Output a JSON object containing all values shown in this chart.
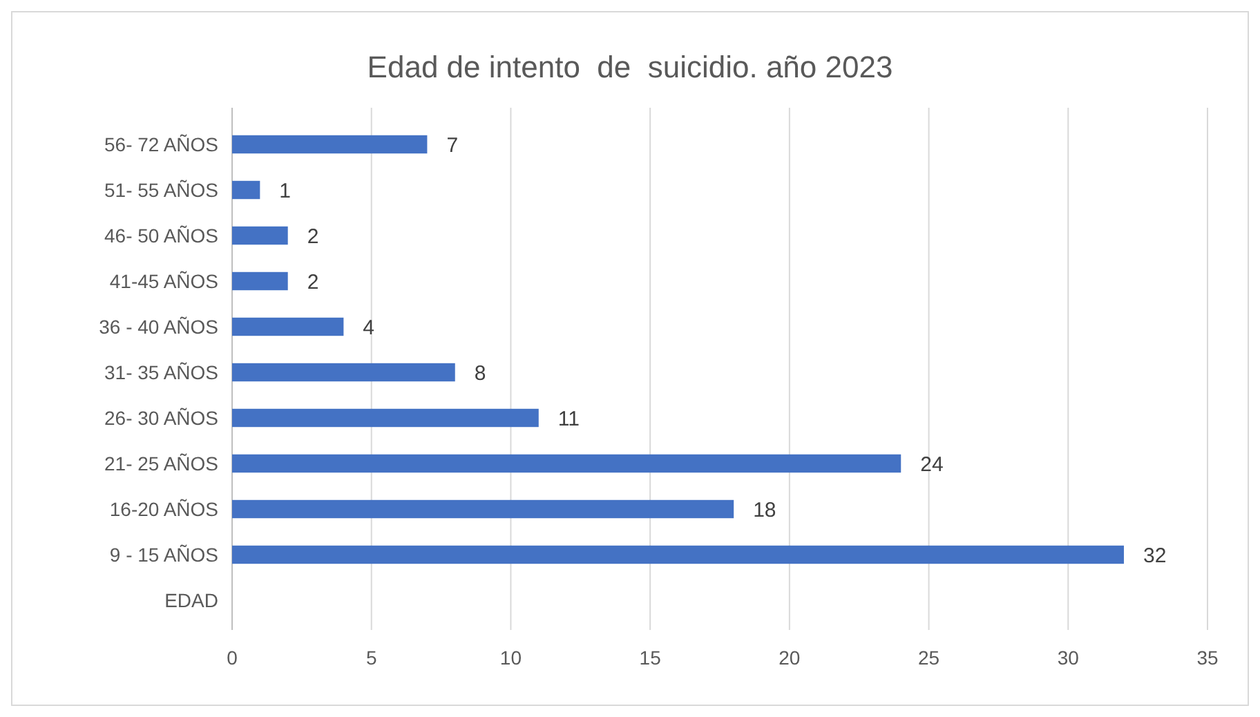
{
  "chart_data": {
    "type": "bar",
    "orientation": "horizontal",
    "title": "Edad de intento  de  suicidio. año 2023",
    "categories": [
      "56- 72 AÑOS",
      "51- 55 AÑOS",
      "46- 50 AÑOS",
      "41-45 AÑOS",
      "36 - 40 AÑOS",
      "31- 35 AÑOS",
      "26- 30 AÑOS",
      "21- 25 AÑOS",
      "16-20 AÑOS",
      "9 - 15 AÑOS",
      "EDAD"
    ],
    "values": [
      7,
      1,
      2,
      2,
      4,
      8,
      11,
      24,
      18,
      32,
      null
    ],
    "color": "#4472c4",
    "xlim": [
      0,
      35
    ],
    "xticks": [
      0,
      5,
      10,
      15,
      20,
      25,
      30,
      35
    ],
    "grid": "x",
    "data_labels": true
  }
}
